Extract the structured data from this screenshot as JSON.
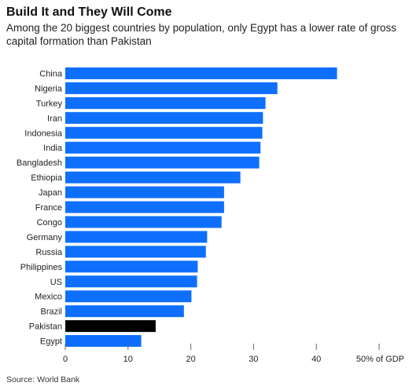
{
  "title": "Build It and They Will Come",
  "subtitle": "Among the 20 biggest countries by population, only Egypt has a lower rate of gross capital formation than Pakistan",
  "source": "Source: World Bank",
  "chart_data": {
    "type": "bar",
    "orientation": "horizontal",
    "title": "Build It and They Will Come",
    "subtitle": "Among the 20 biggest countries by population, only Egypt has a lower rate of gross capital formation than Pakistan",
    "categories": [
      "China",
      "Nigeria",
      "Turkey",
      "Iran",
      "Indonesia",
      "India",
      "Bangladesh",
      "Ethiopia",
      "Japan",
      "France",
      "Congo",
      "Germany",
      "Russia",
      "Philippines",
      "US",
      "Mexico",
      "Brazil",
      "Pakistan",
      "Egypt"
    ],
    "values": [
      43.3,
      33.8,
      31.9,
      31.5,
      31.4,
      31.1,
      30.9,
      27.9,
      25.3,
      25.3,
      24.9,
      22.6,
      22.4,
      21.1,
      21.0,
      20.1,
      18.9,
      14.4,
      12.1
    ],
    "highlight": "Pakistan",
    "xlim": [
      0,
      50
    ],
    "xticks": [
      0,
      10,
      20,
      30,
      40,
      50
    ],
    "xtick_labels": [
      "0",
      "10",
      "20",
      "30",
      "40",
      "50% of GDP"
    ],
    "xlabel": "",
    "ylabel": "",
    "grid": false,
    "legend": "none",
    "colors": {
      "bar": "#0e6ffc",
      "highlight": "#000000",
      "axis": "#666666",
      "tick_label": "#222222"
    }
  }
}
